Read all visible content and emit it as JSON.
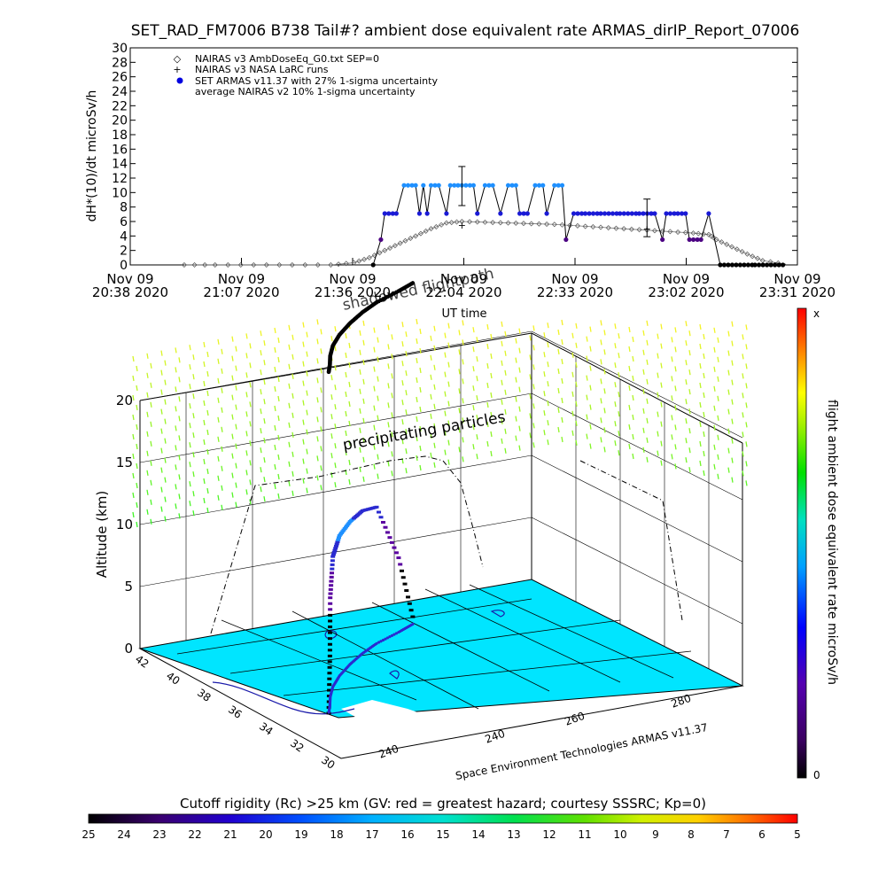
{
  "title": "SET_RAD_FM7006   B738 Tail#? ambient dose equivalent rate ARMAS_dirIP_Report_07006",
  "colors": {
    "armas_high": "#1e90ff",
    "armas_mid": "#1a1ad6",
    "armas_low": "#4b0082",
    "nairas_v3": "#000000",
    "ground": "#00e5ff",
    "coast": "#1a1aaa"
  },
  "chart_data": [
    {
      "type": "scatter",
      "title": "SET_RAD_FM7006   B738 Tail#? ambient dose equivalent rate ARMAS_dirIP_Report_07006",
      "ylabel": "dH*(10)/dt microSv/h",
      "xlabel": "UT time",
      "ylim": [
        0,
        30
      ],
      "yticks": [
        "0",
        "2",
        "4",
        "6",
        "8",
        "10",
        "12",
        "14",
        "16",
        "18",
        "20",
        "22",
        "24",
        "26",
        "28",
        "30"
      ],
      "xticks": [
        {
          "date": "Nov 09",
          "time": "20:38 2020"
        },
        {
          "date": "Nov 09",
          "time": "21:07 2020"
        },
        {
          "date": "Nov 09",
          "time": "21:36 2020"
        },
        {
          "date": "Nov 09",
          "time": "22:04 2020"
        },
        {
          "date": "Nov 09",
          "time": "22:33 2020"
        },
        {
          "date": "Nov 09",
          "time": "23:02 2020"
        },
        {
          "date": "Nov 09",
          "time": "23:31 2020"
        }
      ],
      "legend": [
        {
          "symbol": "◇",
          "label": "NAIRAS v3 AmbDoseEq_G0.txt SEP=0"
        },
        {
          "symbol": "+",
          "label": "NAIRAS v3 NASA LaRC runs"
        },
        {
          "symbol": "●",
          "label": "SET ARMAS v11.37 with 27% 1-sigma uncertainty"
        },
        {
          "symbol": "",
          "label": "average NAIRAS v2 10% 1-sigma uncertainty"
        }
      ],
      "legend_position": "top-left",
      "series": [
        {
          "name": "NAIRAS v3 AmbDoseEq_G0.txt SEP=0",
          "points": [
            [
              "20:52",
              0
            ],
            [
              "21:00",
              0
            ],
            [
              "21:10",
              0
            ],
            [
              "21:20",
              0
            ],
            [
              "21:30",
              0
            ],
            [
              "21:36",
              0.3
            ],
            [
              "21:40",
              1
            ],
            [
              "21:44",
              2
            ],
            [
              "21:48",
              3
            ],
            [
              "21:52",
              4
            ],
            [
              "21:56",
              5
            ],
            [
              "22:00",
              5.8
            ],
            [
              "22:04",
              6
            ],
            [
              "22:10",
              5.9
            ],
            [
              "22:16",
              5.8
            ],
            [
              "22:22",
              5.7
            ],
            [
              "22:28",
              5.6
            ],
            [
              "22:34",
              5.4
            ],
            [
              "22:40",
              5.2
            ],
            [
              "22:46",
              5.0
            ],
            [
              "22:52",
              4.8
            ],
            [
              "22:58",
              4.6
            ],
            [
              "23:04",
              4.4
            ],
            [
              "23:08",
              4.2
            ],
            [
              "23:10",
              3.5
            ],
            [
              "23:14",
              2.5
            ],
            [
              "23:18",
              1.5
            ],
            [
              "23:22",
              0.6
            ],
            [
              "23:28",
              0.1
            ]
          ]
        },
        {
          "name": "SET ARMAS v11.37 with 27% 1-sigma uncertainty",
          "points": [
            [
              "21:41",
              0
            ],
            [
              "21:43",
              3.5
            ],
            [
              "21:44",
              7.1
            ],
            [
              "21:47",
              7.1
            ],
            [
              "21:49",
              11
            ],
            [
              "21:52",
              11
            ],
            [
              "21:53",
              7.1
            ],
            [
              "21:54",
              11
            ],
            [
              "21:55",
              7.1
            ],
            [
              "21:56",
              11
            ],
            [
              "21:58",
              11
            ],
            [
              "22:00",
              7.1
            ],
            [
              "22:01",
              11
            ],
            [
              "22:03",
              11
            ],
            [
              "22:04",
              11
            ],
            [
              "22:07",
              11
            ],
            [
              "22:08",
              7.1
            ],
            [
              "22:10",
              11
            ],
            [
              "22:12",
              11
            ],
            [
              "22:14",
              7.1
            ],
            [
              "22:16",
              11
            ],
            [
              "22:18",
              11
            ],
            [
              "22:19",
              7.1
            ],
            [
              "22:21",
              7.1
            ],
            [
              "22:23",
              11
            ],
            [
              "22:25",
              11
            ],
            [
              "22:26",
              7.1
            ],
            [
              "22:28",
              11
            ],
            [
              "22:30",
              11
            ],
            [
              "22:31",
              3.5
            ],
            [
              "22:33",
              7.1
            ],
            [
              "22:36",
              7.1
            ],
            [
              "22:40",
              7.1
            ],
            [
              "22:45",
              7.1
            ],
            [
              "22:50",
              7.1
            ],
            [
              "22:54",
              7.1
            ],
            [
              "22:56",
              3.5
            ],
            [
              "22:57",
              7.1
            ],
            [
              "23:00",
              7.1
            ],
            [
              "23:02",
              7.1
            ],
            [
              "23:03",
              3.5
            ],
            [
              "23:06",
              3.5
            ],
            [
              "23:08",
              7.1
            ],
            [
              "23:11",
              0
            ],
            [
              "23:20",
              0
            ],
            [
              "23:28",
              0
            ]
          ]
        },
        {
          "name": "NAIRAS v3 NASA LaRC runs",
          "points": [
            [
              "22:04",
              5.5
            ],
            [
              "22:52",
              5.0
            ]
          ],
          "error": [
            [
              8.2,
              13.6
            ],
            [
              3.9,
              9.1
            ]
          ]
        }
      ]
    },
    {
      "type": "scatter",
      "subtype": "3d-flight-path",
      "zlabel": "Altitude (km)",
      "zticks": [
        "0",
        "5",
        "10",
        "15",
        "20"
      ],
      "ylabels": [
        "30",
        "32",
        "34",
        "36",
        "38",
        "40",
        "42"
      ],
      "xlabels": [
        "240",
        "240",
        "260",
        "280"
      ],
      "annotations": [
        "shadowed flightpath",
        "precipitating particles",
        "Space Environment Technologies ARMAS v11.37"
      ],
      "flight_path": [
        {
          "lat": 33.9,
          "lon": 241.6,
          "alt": 0,
          "dose": 0
        },
        {
          "lat": 34.5,
          "lon": 243.0,
          "alt": 4,
          "dose": 0
        },
        {
          "lat": 35.2,
          "lon": 244.5,
          "alt": 8,
          "dose": 4
        },
        {
          "lat": 36.0,
          "lon": 246.5,
          "alt": 10.5,
          "dose": 7
        },
        {
          "lat": 36.8,
          "lon": 249.0,
          "alt": 11.3,
          "dose": 11
        },
        {
          "lat": 37.6,
          "lon": 252.0,
          "alt": 11.5,
          "dose": 11
        },
        {
          "lat": 38.3,
          "lon": 255.0,
          "alt": 11.5,
          "dose": 7
        },
        {
          "lat": 38.9,
          "lon": 258.0,
          "alt": 11.0,
          "dose": 7
        },
        {
          "lat": 39.5,
          "lon": 262.0,
          "alt": 6,
          "dose": 3.5
        },
        {
          "lat": 40.0,
          "lon": 265.0,
          "alt": 0,
          "dose": 0
        }
      ],
      "colorbar": {
        "label": "flight ambient dose equivalent rate microSv/h",
        "top": "x",
        "bottom": "0"
      }
    },
    {
      "type": "heatmap",
      "subtype": "colorbar",
      "title": "Cutoff rigidity (Rc) >25 km (GV: red = greatest hazard; courtesy SSSRC; Kp=0)",
      "ticks": [
        "25",
        "24",
        "23",
        "22",
        "21",
        "20",
        "19",
        "18",
        "17",
        "16",
        "15",
        "14",
        "13",
        "12",
        "11",
        "10",
        "9",
        "8",
        "7",
        "6",
        "5"
      ]
    }
  ]
}
